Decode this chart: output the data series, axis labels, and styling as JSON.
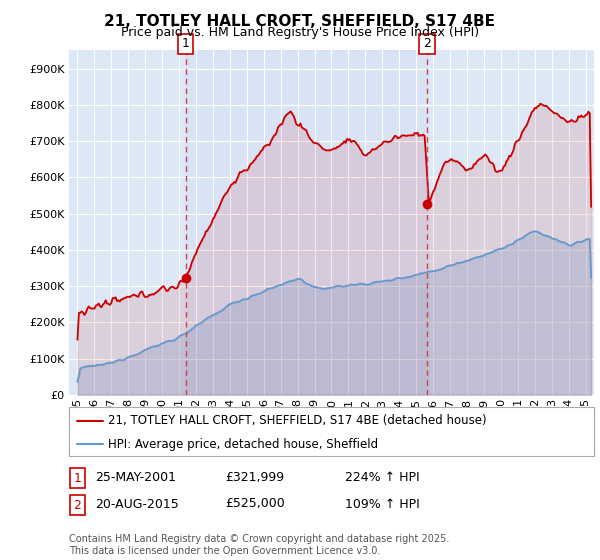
{
  "title": "21, TOTLEY HALL CROFT, SHEFFIELD, S17 4BE",
  "subtitle": "Price paid vs. HM Land Registry's House Price Index (HPI)",
  "ylabel_ticks": [
    "£0",
    "£100K",
    "£200K",
    "£300K",
    "£400K",
    "£500K",
    "£600K",
    "£700K",
    "£800K",
    "£900K"
  ],
  "ytick_vals": [
    0,
    100000,
    200000,
    300000,
    400000,
    500000,
    600000,
    700000,
    800000,
    900000
  ],
  "ylim": [
    0,
    950000
  ],
  "xlim_start": 1994.5,
  "xlim_end": 2025.5,
  "marker1_x": 2001.38,
  "marker1_price": 321999,
  "marker1_date": "25-MAY-2001",
  "marker1_hpi": "224% ↑ HPI",
  "marker2_x": 2015.63,
  "marker2_price": 525000,
  "marker2_date": "20-AUG-2015",
  "marker2_hpi": "109% ↑ HPI",
  "red_line_color": "#cc0000",
  "blue_line_color": "#6699cc",
  "plot_bg_color": "#dce8f5",
  "grid_color": "#ffffff",
  "background_color": "#ffffff",
  "legend_line1": "21, TOTLEY HALL CROFT, SHEFFIELD, S17 4BE (detached house)",
  "legend_line2": "HPI: Average price, detached house, Sheffield",
  "footer": "Contains HM Land Registry data © Crown copyright and database right 2025.\nThis data is licensed under the Open Government Licence v3.0.",
  "title_fontsize": 11,
  "subtitle_fontsize": 9,
  "tick_fontsize": 8,
  "legend_fontsize": 8.5,
  "annot_fontsize": 9,
  "footer_fontsize": 7
}
